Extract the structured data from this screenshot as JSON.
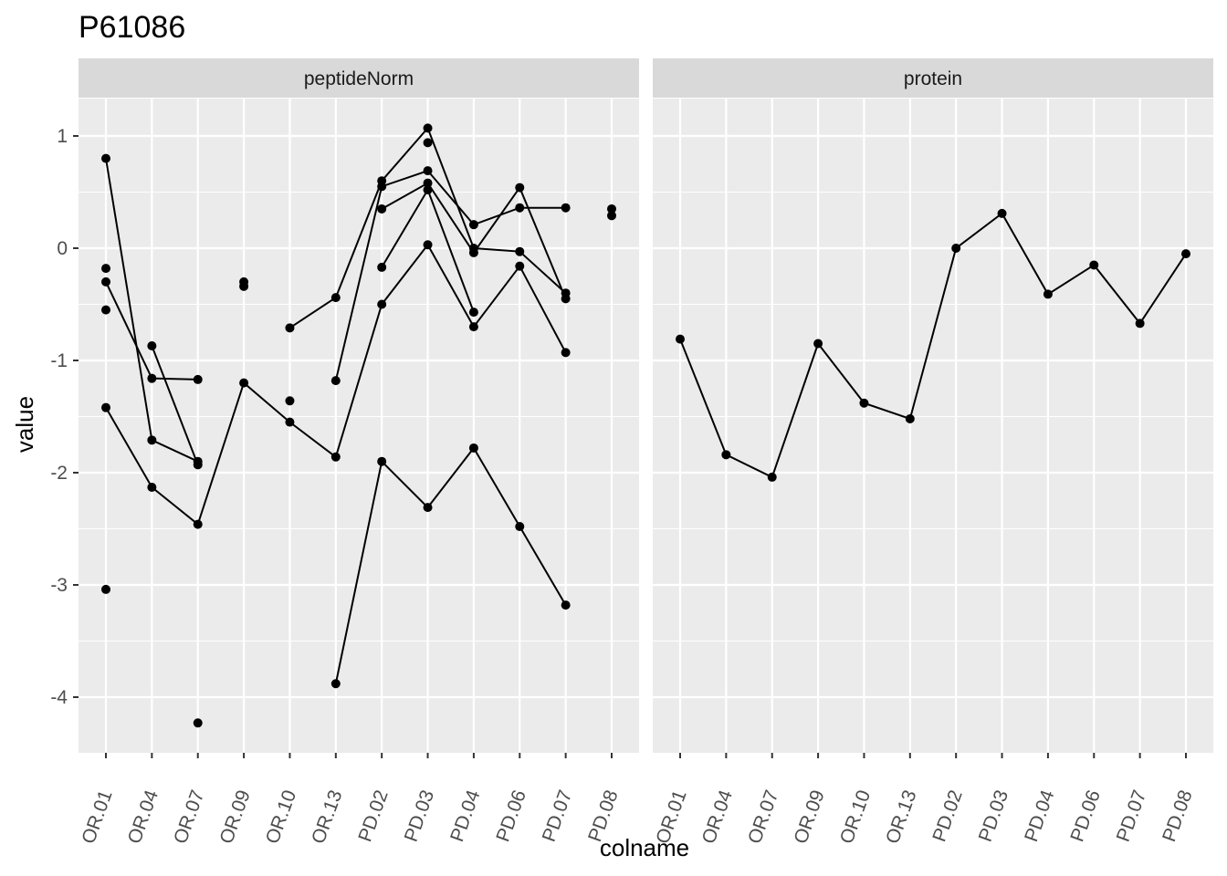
{
  "chart_data": {
    "type": "line",
    "title": "P61086",
    "xlabel": "colname",
    "ylabel": "value",
    "ylim": [
      -4.5,
      1.35
    ],
    "y_ticks": [
      1,
      0,
      -1,
      -2,
      -3,
      -4
    ],
    "y_tick_labels": [
      "1",
      "0",
      "-1",
      "-2",
      "-3",
      "-4"
    ],
    "categories": [
      "OR.01",
      "OR.04",
      "OR.07",
      "OR.09",
      "OR.10",
      "OR.13",
      "PD.02",
      "PD.03",
      "PD.04",
      "PD.06",
      "PD.07",
      "PD.08"
    ],
    "grid": true,
    "legend": "none",
    "colors": {
      "panel_bg": "#ebebeb",
      "grid": "#ffffff",
      "strip_bg": "#d9d9d9",
      "line": "#000000",
      "point": "#000000",
      "tick": "#333333"
    },
    "panels": [
      {
        "label": "peptideNorm",
        "series": [
          {
            "values": [
              0.8,
              -1.71,
              -1.9,
              null,
              null,
              null,
              null,
              null,
              null,
              null,
              null,
              null
            ]
          },
          {
            "values": [
              -0.3,
              -1.16,
              -1.17,
              null,
              null,
              null,
              null,
              null,
              null,
              null,
              null,
              null
            ]
          },
          {
            "values": [
              -1.42,
              -2.13,
              -2.46,
              -1.2,
              -1.55,
              -1.86,
              -0.5,
              0.03,
              -0.7,
              -0.16,
              -0.93,
              null
            ]
          },
          {
            "values": [
              null,
              -0.87,
              -1.93,
              null,
              null,
              null,
              null,
              null,
              null,
              null,
              null,
              null
            ]
          },
          {
            "values": [
              null,
              null,
              null,
              null,
              -0.71,
              -0.44,
              0.6,
              1.07,
              0.0,
              -0.03,
              -0.4,
              null
            ]
          },
          {
            "values": [
              null,
              null,
              null,
              null,
              null,
              -1.18,
              0.55,
              0.69,
              0.21,
              0.36,
              0.36,
              null
            ]
          },
          {
            "values": [
              null,
              null,
              null,
              null,
              null,
              -3.88,
              -1.9,
              -2.31,
              -1.78,
              -2.48,
              -3.18,
              null
            ]
          },
          {
            "values": [
              null,
              null,
              null,
              null,
              null,
              null,
              0.35,
              0.58,
              -0.04,
              0.54,
              -0.45,
              null
            ]
          },
          {
            "values": [
              null,
              null,
              null,
              null,
              null,
              null,
              -0.17,
              0.52,
              -0.57,
              null,
              null,
              null
            ]
          }
        ],
        "points": [
          {
            "x": "OR.01",
            "y": -0.18
          },
          {
            "x": "OR.01",
            "y": -0.55
          },
          {
            "x": "OR.01",
            "y": -3.04
          },
          {
            "x": "OR.07",
            "y": -4.23
          },
          {
            "x": "OR.09",
            "y": -0.3
          },
          {
            "x": "OR.09",
            "y": -0.34
          },
          {
            "x": "OR.10",
            "y": -1.36
          },
          {
            "x": "PD.03",
            "y": 0.94
          },
          {
            "x": "PD.08",
            "y": 0.35
          },
          {
            "x": "PD.08",
            "y": 0.29
          }
        ]
      },
      {
        "label": "protein",
        "series": [
          {
            "values": [
              -0.81,
              -1.84,
              -2.04,
              -0.85,
              -1.38,
              -1.52,
              0.0,
              0.31,
              -0.41,
              -0.15,
              -0.67,
              -0.05
            ]
          }
        ],
        "points": []
      }
    ]
  }
}
